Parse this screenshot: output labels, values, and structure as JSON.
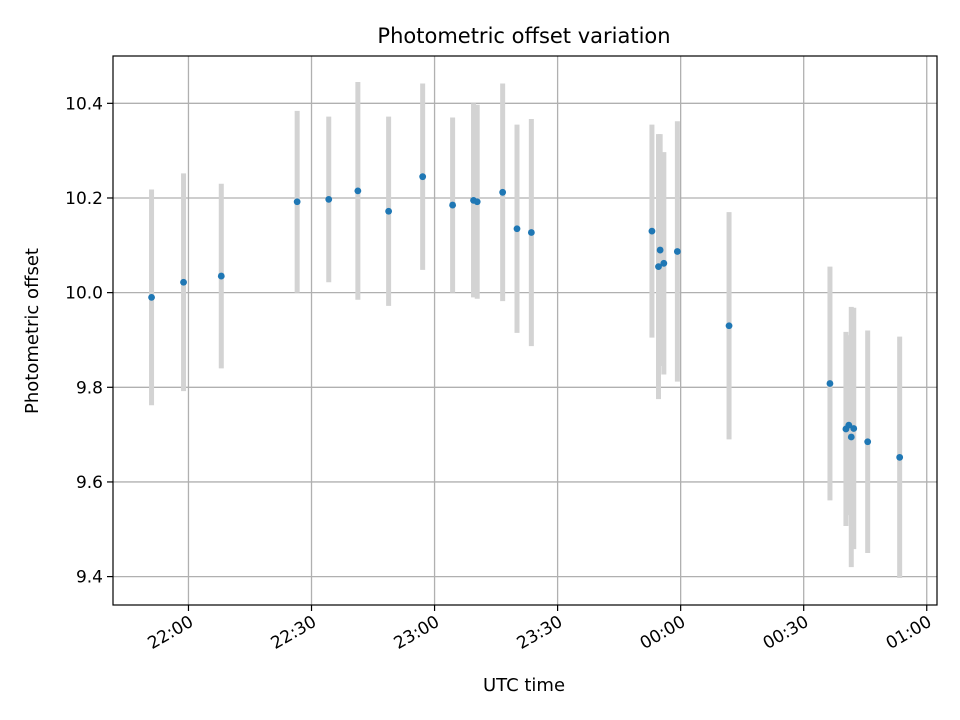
{
  "chart_data": {
    "type": "scatter",
    "title": "Photometric offset variation",
    "xlabel": "UTC time",
    "ylabel": "Photometric offset",
    "x_axis_kind": "time",
    "x_reference_date": "day 0 = evening, day 1 = after midnight",
    "x_ticks": [
      {
        "label": "22:00",
        "minutes": 1320
      },
      {
        "label": "22:30",
        "minutes": 1350
      },
      {
        "label": "23:00",
        "minutes": 1380
      },
      {
        "label": "23:30",
        "minutes": 1410
      },
      {
        "label": "00:00",
        "minutes": 1440
      },
      {
        "label": "00:30",
        "minutes": 1470
      },
      {
        "label": "01:00",
        "minutes": 1500
      }
    ],
    "xlim_minutes": [
      1301.6,
      1502.5
    ],
    "ylim": [
      9.34,
      10.5
    ],
    "y_ticks": [
      9.4,
      9.6,
      9.8,
      10.0,
      10.2,
      10.4
    ],
    "grid": true,
    "colors": {
      "point": "#1f77b4",
      "errorbar": "#d3d3d3",
      "grid": "#b0b0b0"
    },
    "points": [
      {
        "time": "21:51",
        "minutes": 1311.0,
        "y": 9.99,
        "err": 0.228
      },
      {
        "time": "21:59",
        "minutes": 1318.8,
        "y": 10.022,
        "err": 0.23
      },
      {
        "time": "22:08",
        "minutes": 1328.0,
        "y": 10.035,
        "err": 0.195
      },
      {
        "time": "22:26",
        "minutes": 1346.5,
        "y": 10.192,
        "err": 0.192
      },
      {
        "time": "22:34",
        "minutes": 1354.2,
        "y": 10.197,
        "err": 0.175
      },
      {
        "time": "22:41",
        "minutes": 1361.3,
        "y": 10.215,
        "err": 0.23
      },
      {
        "time": "22:48",
        "minutes": 1368.8,
        "y": 10.172,
        "err": 0.2
      },
      {
        "time": "22:57",
        "minutes": 1377.1,
        "y": 10.245,
        "err": 0.197
      },
      {
        "time": "23:04",
        "minutes": 1384.4,
        "y": 10.185,
        "err": 0.185
      },
      {
        "time": "23:09",
        "minutes": 1389.5,
        "y": 10.195,
        "err": 0.205
      },
      {
        "time": "23:10",
        "minutes": 1390.4,
        "y": 10.192,
        "err": 0.205
      },
      {
        "time": "23:16",
        "minutes": 1396.6,
        "y": 10.212,
        "err": 0.23
      },
      {
        "time": "23:20",
        "minutes": 1400.1,
        "y": 10.135,
        "err": 0.22
      },
      {
        "time": "23:24",
        "minutes": 1403.6,
        "y": 10.127,
        "err": 0.24
      },
      {
        "time": "23:53",
        "minutes": 1433.0,
        "y": 10.13,
        "err": 0.225
      },
      {
        "time": "23:55",
        "minutes": 1434.6,
        "y": 10.055,
        "err": 0.28
      },
      {
        "time": "23:55",
        "minutes": 1435.0,
        "y": 10.09,
        "err": 0.245
      },
      {
        "time": "23:56",
        "minutes": 1435.9,
        "y": 10.062,
        "err": 0.235
      },
      {
        "time": "23:59",
        "minutes": 1439.2,
        "y": 10.087,
        "err": 0.275
      },
      {
        "time": "00:12",
        "minutes": 1451.8,
        "y": 9.93,
        "err": 0.24
      },
      {
        "time": "00:36",
        "minutes": 1476.4,
        "y": 9.808,
        "err": 0.247
      },
      {
        "time": "00:40",
        "minutes": 1480.3,
        "y": 9.712,
        "err": 0.205
      },
      {
        "time": "00:41",
        "minutes": 1481.0,
        "y": 9.72,
        "err": 0.19
      },
      {
        "time": "00:41",
        "minutes": 1481.6,
        "y": 9.695,
        "err": 0.275
      },
      {
        "time": "00:42",
        "minutes": 1482.2,
        "y": 9.713,
        "err": 0.255
      },
      {
        "time": "00:45",
        "minutes": 1485.6,
        "y": 9.685,
        "err": 0.235
      },
      {
        "time": "00:53",
        "minutes": 1493.4,
        "y": 9.652,
        "err": 0.255
      }
    ]
  }
}
